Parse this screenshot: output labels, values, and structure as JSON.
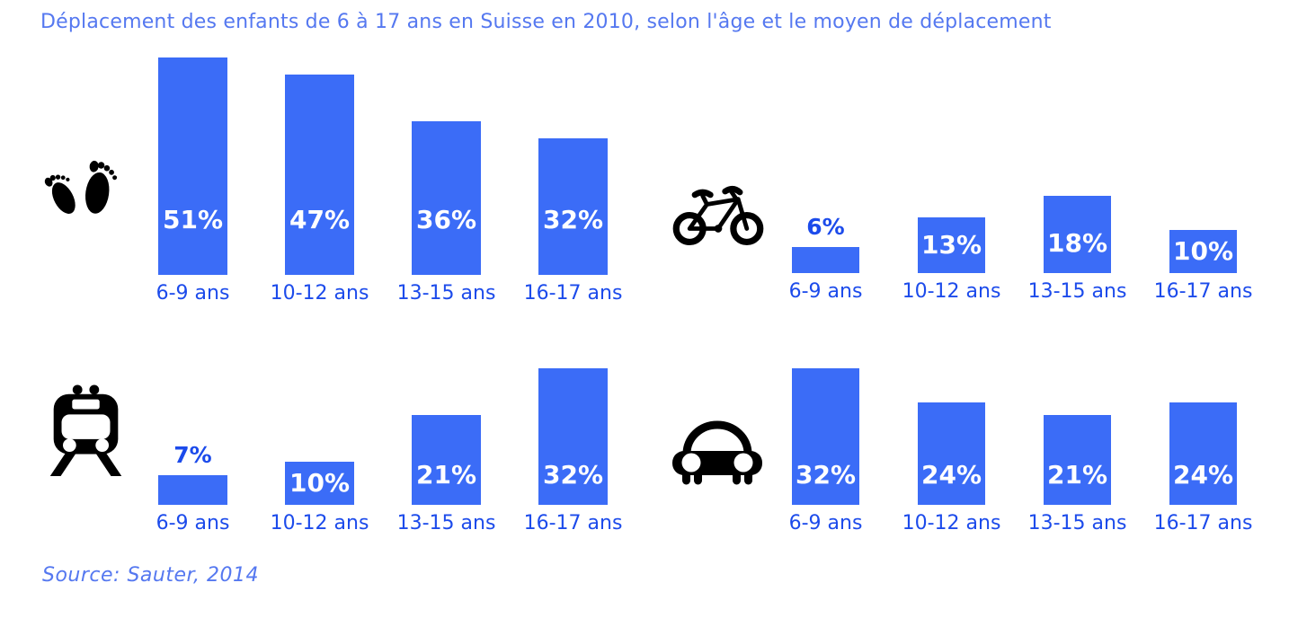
{
  "title": "Déplacement des enfants de 6 à 17 ans en Suisse en 2010, selon l'âge et le moyen de déplacement",
  "source": "Source: Sauter, 2014",
  "colors": {
    "bar": "#3B6CF7",
    "category_label": "#1C4BEB",
    "value_outside": "#1C4BEB",
    "value_inside": "#FFFFFF",
    "title_text": "#5578F0",
    "source_text": "#5578F0"
  },
  "chart_data": {
    "type": "bar",
    "title": "Déplacement des enfants de 6 à 17 ans en Suisse en 2010, selon l'âge et le moyen de déplacement",
    "categories": [
      "6-9 ans",
      "10-12 ans",
      "13-15 ans",
      "16-17 ans"
    ],
    "unit": "%",
    "series": [
      {
        "name": "walking",
        "icon": "footprints-icon",
        "values": [
          51,
          47,
          36,
          32
        ],
        "labels": [
          "51%",
          "47%",
          "36%",
          "32%"
        ]
      },
      {
        "name": "bicycle",
        "icon": "bicycle-icon",
        "values": [
          6,
          13,
          18,
          10
        ],
        "labels": [
          "6%",
          "13%",
          "18%",
          "10%"
        ]
      },
      {
        "name": "train",
        "icon": "train-icon",
        "values": [
          7,
          10,
          21,
          32
        ],
        "labels": [
          "7%",
          "10%",
          "21%",
          "32%"
        ]
      },
      {
        "name": "car",
        "icon": "car-icon",
        "values": [
          32,
          24,
          21,
          24
        ],
        "labels": [
          "32%",
          "24%",
          "21%",
          "24%"
        ]
      }
    ],
    "value_range": [
      0,
      51
    ],
    "grid": false,
    "legend": "pictogram-icons-left-of-each-group",
    "source": "Source: Sauter, 2014"
  }
}
